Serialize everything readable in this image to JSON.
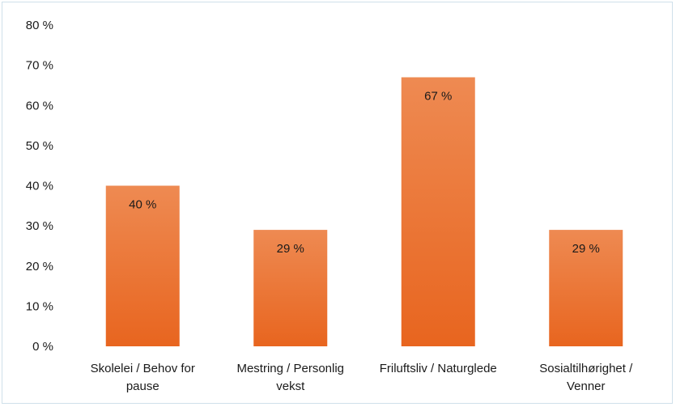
{
  "chart_data": {
    "type": "bar",
    "categories": [
      [
        "Skolelei / Behov for",
        "pause"
      ],
      [
        "Mestring / Personlig",
        "vekst"
      ],
      [
        "Friluftsliv / Naturglede"
      ],
      [
        "Sosialtilhørighet /",
        "Venner"
      ]
    ],
    "values": [
      40,
      29,
      67,
      29
    ],
    "data_labels": [
      "40 %",
      "29 %",
      "67 %",
      "29 %"
    ],
    "y_ticks": [
      {
        "value": 0,
        "label": "0 %"
      },
      {
        "value": 10,
        "label": "10 %"
      },
      {
        "value": 20,
        "label": "20 %"
      },
      {
        "value": 30,
        "label": "30 %"
      },
      {
        "value": 40,
        "label": "40 %"
      },
      {
        "value": 50,
        "label": "50 %"
      },
      {
        "value": 60,
        "label": "60 %"
      },
      {
        "value": 70,
        "label": "70 %"
      },
      {
        "value": 80,
        "label": "80 %"
      }
    ],
    "ylim": [
      0,
      80
    ],
    "grid": false,
    "legend": "none",
    "title": "",
    "xlabel": "",
    "ylabel": "",
    "colors": {
      "bar_top": "#EE8A52",
      "bar_bottom": "#E8651F",
      "frame_border": "#CFE0EA",
      "text": "#1A1A1A"
    }
  }
}
